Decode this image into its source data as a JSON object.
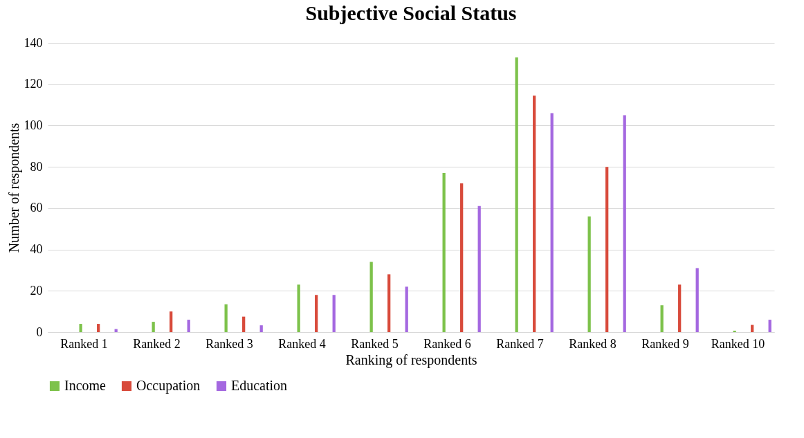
{
  "chart_data": {
    "type": "bar",
    "title": "Subjective Social Status",
    "xlabel": "Ranking of respondents",
    "ylabel": "Number of respondents",
    "categories": [
      "Ranked 1",
      "Ranked 2",
      "Ranked 3",
      "Ranked 4",
      "Ranked 5",
      "Ranked 6",
      "Ranked 7",
      "Ranked 8",
      "Ranked 9",
      "Ranked 10"
    ],
    "series": [
      {
        "name": "Income",
        "color": "#7dc24b",
        "values": [
          4,
          5,
          13.5,
          23,
          34,
          77,
          133,
          56,
          13,
          0.7
        ]
      },
      {
        "name": "Occupation",
        "color": "#d84a3b",
        "values": [
          4,
          10,
          7.5,
          18,
          28,
          72,
          114.5,
          80,
          23,
          3.5
        ]
      },
      {
        "name": "Education",
        "color": "#a468e0",
        "values": [
          1.5,
          6,
          3.3,
          18,
          22,
          61,
          106,
          105,
          31,
          6
        ]
      }
    ],
    "ylim": [
      0,
      140
    ],
    "yticks": [
      0,
      20,
      40,
      60,
      80,
      100,
      120,
      140
    ],
    "grid": "y",
    "legend": "bottom"
  }
}
